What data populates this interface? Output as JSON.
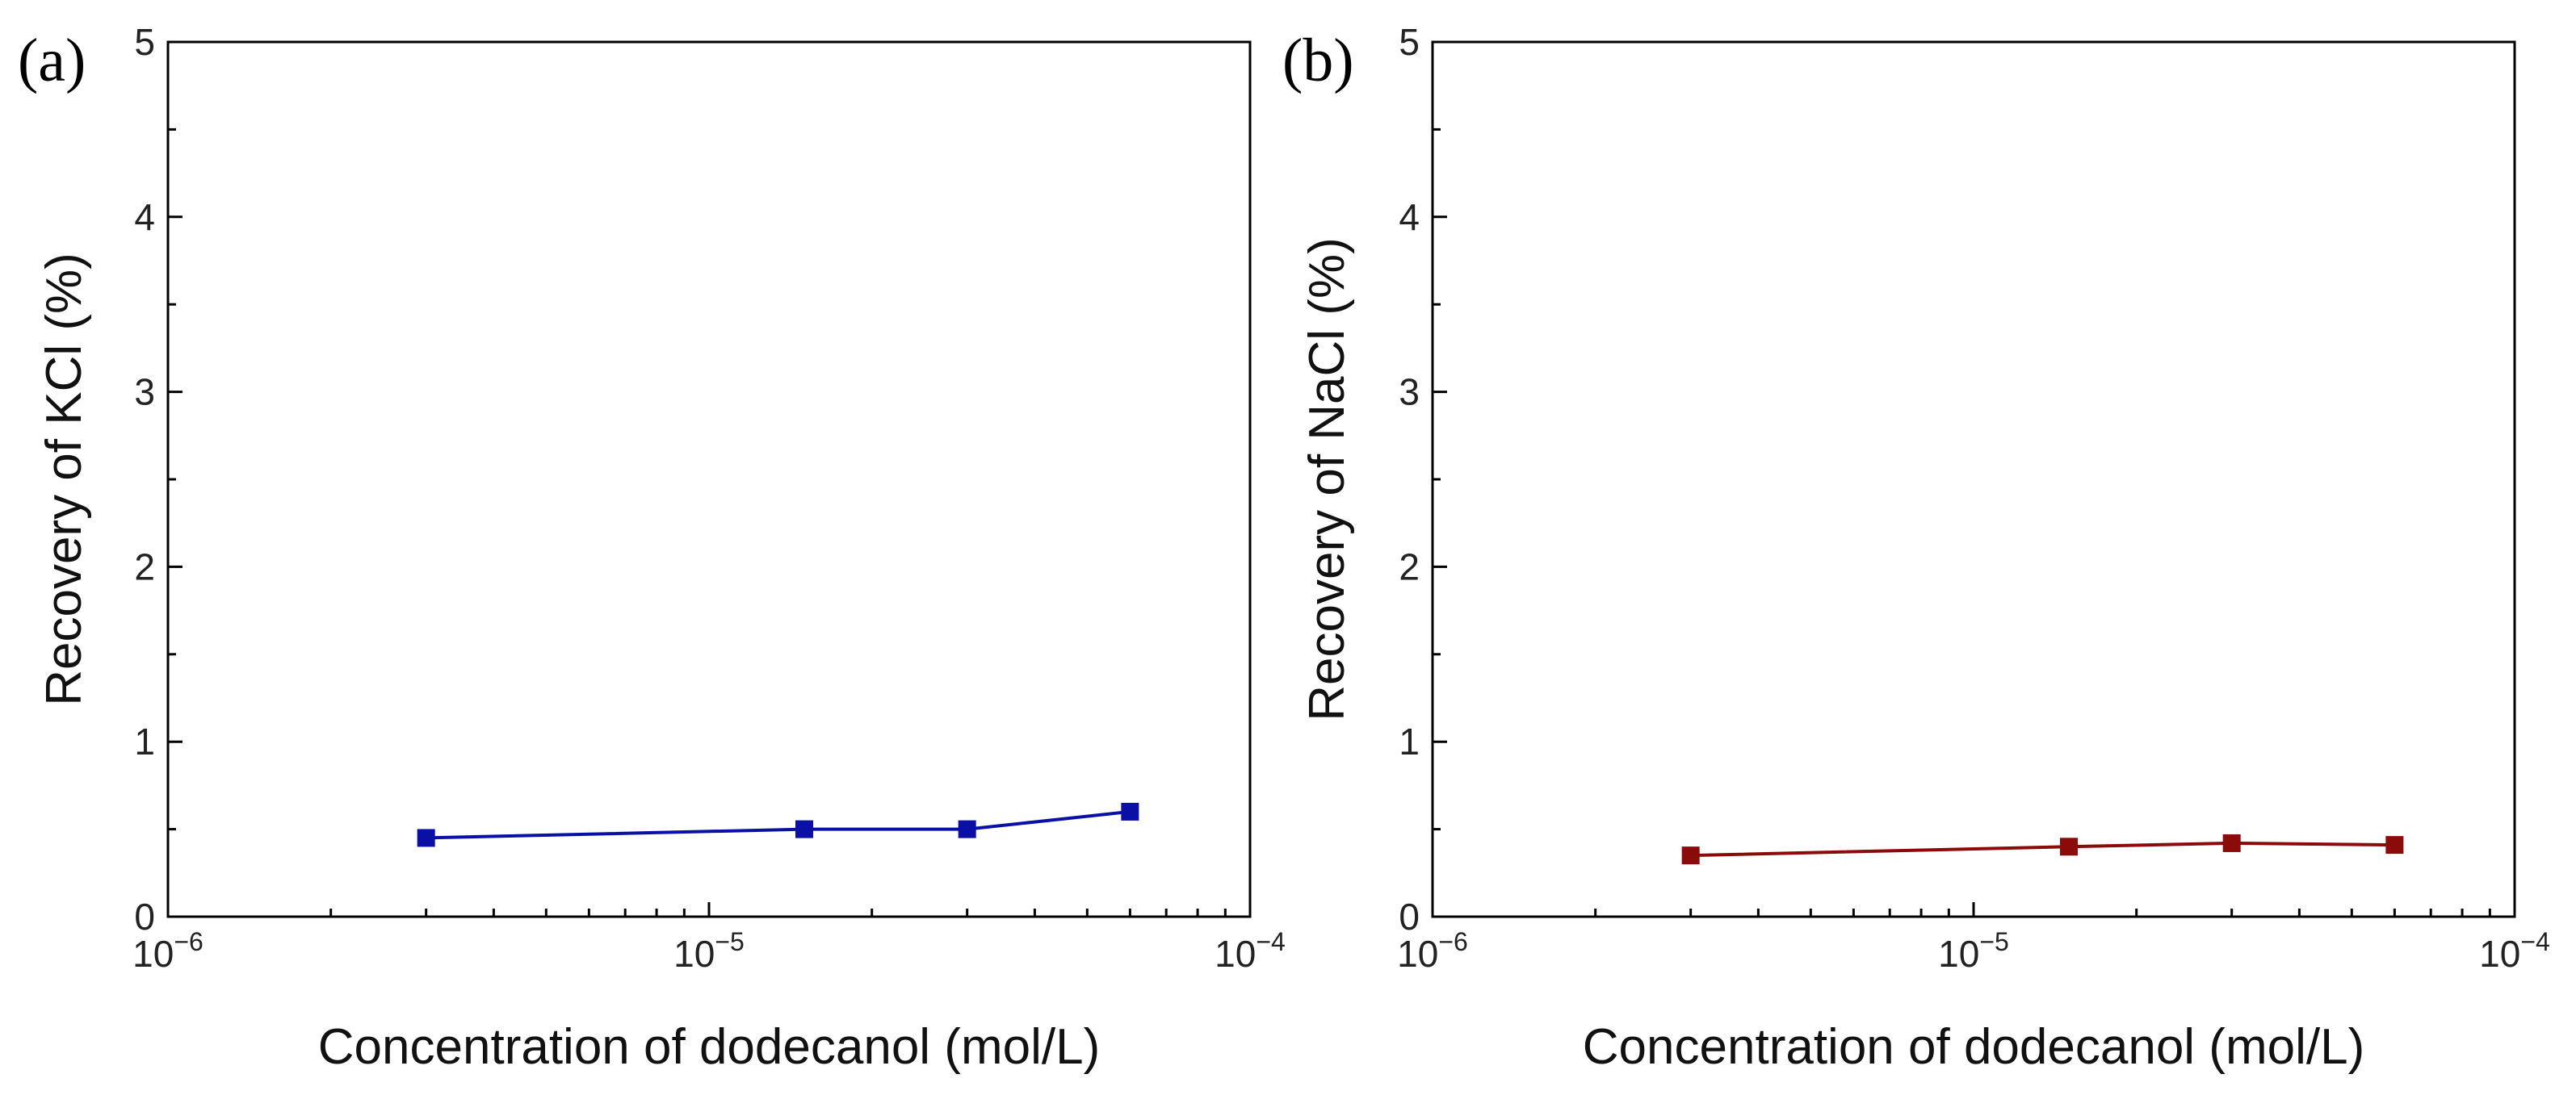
{
  "chart_data": [
    {
      "type": "line",
      "panel_label": "(a)",
      "xlabel": "Concentration of dodecanol (mol/L)",
      "ylabel": "Recovery of KCl (%)",
      "xscale": "log",
      "xlim": [
        1e-06,
        0.0001
      ],
      "ylim": [
        0,
        5
      ],
      "xtick_labels": [
        {
          "base": "10",
          "exp": "−6"
        },
        {
          "base": "10",
          "exp": "−5"
        },
        {
          "base": "10",
          "exp": "−4"
        }
      ],
      "ytick_labels": [
        "0",
        "1",
        "2",
        "3",
        "4",
        "5"
      ],
      "grid": false,
      "marker": "square",
      "series": [
        {
          "color": "#0a0fa6",
          "x": [
            3e-06,
            1.5e-05,
            3e-05,
            6e-05
          ],
          "y": [
            0.45,
            0.5,
            0.5,
            0.6
          ]
        }
      ]
    },
    {
      "type": "line",
      "panel_label": "(b)",
      "xlabel": "Concentration of dodecanol (mol/L)",
      "ylabel": "Recovery of NaCl (%)",
      "xscale": "log",
      "xlim": [
        1e-06,
        0.0001
      ],
      "ylim": [
        0,
        5
      ],
      "xtick_labels": [
        {
          "base": "10",
          "exp": "−6"
        },
        {
          "base": "10",
          "exp": "−5"
        },
        {
          "base": "10",
          "exp": "−4"
        }
      ],
      "ytick_labels": [
        "0",
        "1",
        "2",
        "3",
        "4",
        "5"
      ],
      "grid": false,
      "marker": "square",
      "series": [
        {
          "color": "#8b0a0a",
          "x": [
            3e-06,
            1.5e-05,
            3e-05,
            6e-05
          ],
          "y": [
            0.35,
            0.4,
            0.42,
            0.41
          ]
        }
      ]
    }
  ]
}
